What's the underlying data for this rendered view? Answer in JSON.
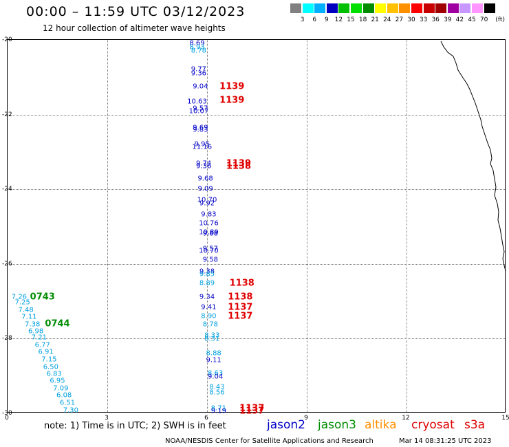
{
  "title": "00:00 – 11:59 UTC 03/12/2023",
  "subtitle": "12 hour collection of altimeter wave heights",
  "colorbar": {
    "unit": "(ft)",
    "bins": [
      {
        "label": "3",
        "color": "#808080"
      },
      {
        "label": "6",
        "color": "#00ffff"
      },
      {
        "label": "9",
        "color": "#00b0ff"
      },
      {
        "label": "12",
        "color": "#0000c0"
      },
      {
        "label": "15",
        "color": "#00c000"
      },
      {
        "label": "18",
        "color": "#00e000"
      },
      {
        "label": "21",
        "color": "#008c00"
      },
      {
        "label": "24",
        "color": "#ffff00"
      },
      {
        "label": "27",
        "color": "#ffc000"
      },
      {
        "label": "30",
        "color": "#ff9000"
      },
      {
        "label": "33",
        "color": "#ff0000"
      },
      {
        "label": "36",
        "color": "#c80000"
      },
      {
        "label": "39",
        "color": "#a00000"
      },
      {
        "label": "42",
        "color": "#a000a0"
      },
      {
        "label": "45",
        "color": "#c896ff"
      },
      {
        "label": "70",
        "color": "#ff96ff"
      },
      {
        "label": "",
        "color": "#000000"
      }
    ]
  },
  "axes": {
    "x": {
      "min": 0,
      "max": 15,
      "ticks": [
        0,
        3,
        6,
        9,
        12,
        15
      ]
    },
    "y": {
      "min": -30,
      "max": -20,
      "ticks": [
        -20,
        -22,
        -24,
        -26,
        -28,
        -30
      ]
    }
  },
  "satellites": {
    "jason2": {
      "label": "jason2",
      "color": "#0000c8"
    },
    "jason3": {
      "label": "jason3",
      "color": "#008c00"
    },
    "altika": {
      "label": "altika",
      "color": "#ff9000"
    },
    "cryosat": {
      "label": "cryosat",
      "color": "#e00000"
    },
    "s3a": {
      "label": "s3a",
      "color": "#e00000"
    }
  },
  "observations": [
    {
      "lon": 5.7,
      "lat": -20.1,
      "swh": "8.69",
      "color": "#0000c8"
    },
    {
      "lon": 5.7,
      "lat": -20.2,
      "swh": "8.93",
      "color": "#00a0e0"
    },
    {
      "lon": 5.75,
      "lat": -20.3,
      "swh": "8.78",
      "color": "#00a0e0"
    },
    {
      "lon": 5.75,
      "lat": -20.8,
      "swh": "9.77",
      "color": "#0000c8"
    },
    {
      "lon": 5.75,
      "lat": -20.9,
      "swh": "9.36",
      "color": "#0000c8"
    },
    {
      "lon": 5.8,
      "lat": -21.25,
      "swh": "9.04",
      "color": "#0000c8"
    },
    {
      "lon": 5.7,
      "lat": -21.65,
      "swh": "10.63",
      "color": "#0000c8"
    },
    {
      "lon": 5.8,
      "lat": -21.85,
      "swh": "9.57",
      "color": "#0000c8"
    },
    {
      "lon": 5.75,
      "lat": -21.92,
      "swh": "10.07",
      "color": "#0000c8"
    },
    {
      "lon": 5.8,
      "lat": -22.35,
      "swh": "9.69",
      "color": "#0000c8"
    },
    {
      "lon": 5.8,
      "lat": -22.42,
      "swh": "9.83",
      "color": "#0000c8"
    },
    {
      "lon": 5.85,
      "lat": -22.8,
      "swh": "9.95",
      "color": "#0000c8"
    },
    {
      "lon": 5.85,
      "lat": -22.88,
      "swh": "11.16",
      "color": "#0000c8"
    },
    {
      "lon": 5.9,
      "lat": -23.32,
      "swh": "9.74",
      "color": "#0000c8"
    },
    {
      "lon": 5.9,
      "lat": -23.38,
      "swh": "9.36",
      "color": "#0000c8"
    },
    {
      "lon": 5.95,
      "lat": -23.72,
      "swh": "9.68",
      "color": "#0000c8"
    },
    {
      "lon": 5.95,
      "lat": -24.0,
      "swh": "9.09",
      "color": "#0000c8"
    },
    {
      "lon": 6.0,
      "lat": -24.3,
      "swh": "10.70",
      "color": "#0000c8"
    },
    {
      "lon": 6.0,
      "lat": -24.38,
      "swh": "9.92",
      "color": "#0000c8"
    },
    {
      "lon": 6.05,
      "lat": -24.67,
      "swh": "9.83",
      "color": "#0000c8"
    },
    {
      "lon": 6.05,
      "lat": -24.92,
      "swh": "10.76",
      "color": "#0000c8"
    },
    {
      "lon": 6.05,
      "lat": -25.15,
      "swh": "10.89",
      "color": "#0000c8"
    },
    {
      "lon": 6.1,
      "lat": -25.2,
      "swh": "9.88",
      "color": "#0000c8"
    },
    {
      "lon": 6.1,
      "lat": -25.6,
      "swh": "9.57",
      "color": "#0000c8"
    },
    {
      "lon": 6.05,
      "lat": -25.66,
      "swh": "10.70",
      "color": "#0000c8"
    },
    {
      "lon": 6.1,
      "lat": -25.9,
      "swh": "9.58",
      "color": "#0000c8"
    },
    {
      "lon": 6.0,
      "lat": -26.2,
      "swh": "9.38",
      "color": "#0000c8"
    },
    {
      "lon": 6.0,
      "lat": -26.28,
      "swh": "9.85",
      "color": "#00a0e0"
    },
    {
      "lon": 6.0,
      "lat": -26.52,
      "swh": "8.89",
      "color": "#00a0e0"
    },
    {
      "lon": 6.0,
      "lat": -26.88,
      "swh": "9.34",
      "color": "#0000c8"
    },
    {
      "lon": 6.05,
      "lat": -27.17,
      "swh": "9.41",
      "color": "#0000c8"
    },
    {
      "lon": 6.05,
      "lat": -27.4,
      "swh": "8.90",
      "color": "#00a0e0"
    },
    {
      "lon": 6.1,
      "lat": -27.62,
      "swh": "8.78",
      "color": "#00a0e0"
    },
    {
      "lon": 6.15,
      "lat": -27.92,
      "swh": "8.33",
      "color": "#00a0e0"
    },
    {
      "lon": 6.15,
      "lat": -28.02,
      "swh": "8.31",
      "color": "#00a0e0"
    },
    {
      "lon": 6.2,
      "lat": -28.4,
      "swh": "8.88",
      "color": "#00a0e0"
    },
    {
      "lon": 6.2,
      "lat": -28.58,
      "swh": "9.11",
      "color": "#0000c8"
    },
    {
      "lon": 6.25,
      "lat": -28.94,
      "swh": "8.63",
      "color": "#00a0e0"
    },
    {
      "lon": 6.25,
      "lat": -29.02,
      "swh": "9.04",
      "color": "#0000c8"
    },
    {
      "lon": 6.3,
      "lat": -29.3,
      "swh": "8.43",
      "color": "#00a0e0"
    },
    {
      "lon": 6.3,
      "lat": -29.45,
      "swh": "8.56",
      "color": "#00a0e0"
    },
    {
      "lon": 6.35,
      "lat": -29.88,
      "swh": "8.71",
      "color": "#00a0e0"
    },
    {
      "lon": 6.35,
      "lat": -29.94,
      "swh": "9.19",
      "color": "#0000c8"
    },
    {
      "lon": 0.35,
      "lat": -26.88,
      "swh": "7.26",
      "color": "#00a0e0"
    },
    {
      "lon": 0.45,
      "lat": -27.04,
      "swh": "7.25",
      "color": "#00a0e0"
    },
    {
      "lon": 0.55,
      "lat": -27.23,
      "swh": "7.48",
      "color": "#00a0e0"
    },
    {
      "lon": 0.65,
      "lat": -27.42,
      "swh": "7.11",
      "color": "#00a0e0"
    },
    {
      "lon": 0.75,
      "lat": -27.62,
      "swh": "7.38",
      "color": "#00a0e0"
    },
    {
      "lon": 0.85,
      "lat": -27.8,
      "swh": "6.98",
      "color": "#00a0e0"
    },
    {
      "lon": 0.95,
      "lat": -27.98,
      "swh": "7.21",
      "color": "#00a0e0"
    },
    {
      "lon": 1.05,
      "lat": -28.17,
      "swh": "6.77",
      "color": "#00a0e0"
    },
    {
      "lon": 1.15,
      "lat": -28.37,
      "swh": "6.91",
      "color": "#00a0e0"
    },
    {
      "lon": 1.25,
      "lat": -28.56,
      "swh": "7.15",
      "color": "#00a0e0"
    },
    {
      "lon": 1.3,
      "lat": -28.76,
      "swh": "6.50",
      "color": "#00a0e0"
    },
    {
      "lon": 1.4,
      "lat": -28.95,
      "swh": "6.83",
      "color": "#00a0e0"
    },
    {
      "lon": 1.5,
      "lat": -29.14,
      "swh": "6.95",
      "color": "#00a0e0"
    },
    {
      "lon": 1.6,
      "lat": -29.33,
      "swh": "7.09",
      "color": "#00a0e0"
    },
    {
      "lon": 1.7,
      "lat": -29.53,
      "swh": "6.08",
      "color": "#00a0e0"
    },
    {
      "lon": 1.8,
      "lat": -29.72,
      "swh": "6.51",
      "color": "#00a0e0"
    },
    {
      "lon": 1.9,
      "lat": -29.92,
      "swh": "7.30",
      "color": "#00a0e0"
    }
  ],
  "pass_times": [
    {
      "lon": 6.75,
      "lat": -21.25,
      "time": "1139",
      "color": "#e00000"
    },
    {
      "lon": 6.75,
      "lat": -21.62,
      "time": "1139",
      "color": "#e00000"
    },
    {
      "lon": 6.95,
      "lat": -23.32,
      "time": "1139",
      "color": "#e00000"
    },
    {
      "lon": 6.95,
      "lat": -23.38,
      "time": "1138",
      "color": "#e00000"
    },
    {
      "lon": 7.05,
      "lat": -26.52,
      "time": "1138",
      "color": "#e00000"
    },
    {
      "lon": 7.0,
      "lat": -26.88,
      "time": "1138",
      "color": "#e00000"
    },
    {
      "lon": 7.0,
      "lat": -27.17,
      "time": "1137",
      "color": "#e00000"
    },
    {
      "lon": 7.0,
      "lat": -27.4,
      "time": "1137",
      "color": "#e00000"
    },
    {
      "lon": 7.35,
      "lat": -29.88,
      "time": "1137",
      "color": "#e00000"
    },
    {
      "lon": 7.35,
      "lat": -29.94,
      "time": "1137",
      "color": "#e00000"
    },
    {
      "lon": 1.05,
      "lat": -26.88,
      "time": "0743",
      "color": "#008c00"
    },
    {
      "lon": 1.5,
      "lat": -27.6,
      "time": "0744",
      "color": "#008c00"
    }
  ],
  "note": "note:  1) Time is in UTC;  2) SWH is in feet",
  "credit": "NOAA/NESDIS Center for Satellite Applications and Research",
  "timestamp": "Mar 14 08:31:25 UTC 2023"
}
